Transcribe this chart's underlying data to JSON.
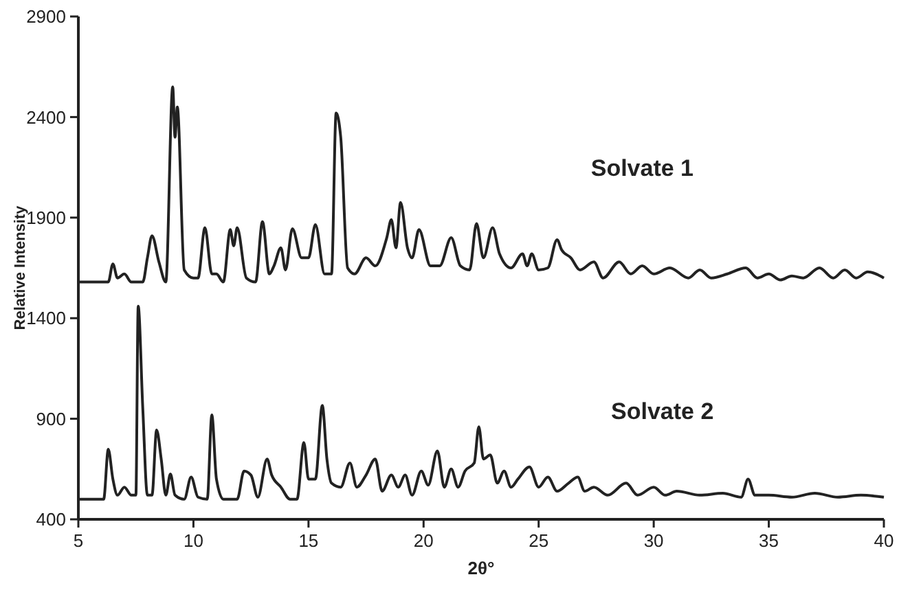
{
  "chart_data": {
    "type": "line",
    "xlabel": "2θ°",
    "ylabel": "Relative Intensity",
    "xlim": [
      5,
      40
    ],
    "xticks": [
      5,
      10,
      15,
      20,
      25,
      30,
      35,
      40
    ],
    "ylim": [
      400,
      2900
    ],
    "yticks": [
      400,
      900,
      1400,
      1900,
      2400,
      2900
    ],
    "grid": false,
    "marker": "none",
    "line_style": "solid",
    "series": [
      {
        "name": "Solvate 1",
        "color": "#222222",
        "x": [
          5,
          6.3,
          6.5,
          6.7,
          7.0,
          7.3,
          7.8,
          8.0,
          8.2,
          8.5,
          8.8,
          9.1,
          9.2,
          9.3,
          9.6,
          10.0,
          10.2,
          10.5,
          10.8,
          11.0,
          11.3,
          11.6,
          11.75,
          11.9,
          12.3,
          12.7,
          13.0,
          13.3,
          13.5,
          13.8,
          14.0,
          14.3,
          14.7,
          15.0,
          15.3,
          15.7,
          16.0,
          16.2,
          16.4,
          16.7,
          17.0,
          17.5,
          17.9,
          18.4,
          18.6,
          18.8,
          19.0,
          19.3,
          19.5,
          19.8,
          20.3,
          20.7,
          21.2,
          21.6,
          22.0,
          22.3,
          22.6,
          23.0,
          23.3,
          23.8,
          24.3,
          24.5,
          24.7,
          25.0,
          25.4,
          25.8,
          26.0,
          26.4,
          26.8,
          27.4,
          27.8,
          28.5,
          29.0,
          29.5,
          30.0,
          30.7,
          31.5,
          32.0,
          32.5,
          33.2,
          34.0,
          34.5,
          35.0,
          35.5,
          36.0,
          36.5,
          37.2,
          37.8,
          38.3,
          38.8,
          39.3,
          40
        ],
        "values": [
          1580,
          1580,
          1670,
          1600,
          1620,
          1580,
          1580,
          1700,
          1810,
          1680,
          1580,
          2550,
          2300,
          2450,
          1640,
          1600,
          1600,
          1850,
          1620,
          1620,
          1580,
          1840,
          1760,
          1850,
          1600,
          1580,
          1880,
          1620,
          1660,
          1750,
          1640,
          1845,
          1700,
          1700,
          1865,
          1620,
          1620,
          2420,
          2300,
          1650,
          1620,
          1700,
          1660,
          1800,
          1890,
          1750,
          1975,
          1750,
          1700,
          1840,
          1660,
          1660,
          1800,
          1660,
          1640,
          1870,
          1700,
          1850,
          1720,
          1650,
          1720,
          1660,
          1720,
          1640,
          1650,
          1790,
          1740,
          1700,
          1640,
          1680,
          1600,
          1680,
          1620,
          1660,
          1620,
          1650,
          1600,
          1640,
          1600,
          1620,
          1650,
          1600,
          1620,
          1590,
          1610,
          1600,
          1650,
          1600,
          1640,
          1600,
          1630,
          1600
        ]
      },
      {
        "name": "Solvate 2",
        "color": "#222222",
        "x": [
          5,
          6.1,
          6.3,
          6.5,
          6.7,
          7.0,
          7.3,
          7.5,
          7.6,
          7.8,
          8.0,
          8.2,
          8.4,
          8.6,
          8.8,
          9.0,
          9.2,
          9.6,
          9.9,
          10.2,
          10.6,
          10.8,
          11.0,
          11.3,
          11.9,
          12.2,
          12.5,
          12.8,
          13.2,
          13.4,
          13.8,
          14.2,
          14.5,
          14.8,
          15.0,
          15.3,
          15.6,
          15.8,
          16.0,
          16.4,
          16.8,
          17.1,
          17.5,
          17.9,
          18.2,
          18.6,
          18.9,
          19.2,
          19.5,
          19.9,
          20.2,
          20.6,
          20.9,
          21.2,
          21.5,
          21.8,
          22.2,
          22.4,
          22.6,
          22.9,
          23.2,
          23.5,
          23.8,
          24.1,
          24.6,
          25.0,
          25.4,
          25.8,
          26.3,
          26.7,
          27.0,
          27.4,
          28.0,
          28.8,
          29.3,
          30.0,
          30.5,
          31.0,
          32.0,
          33.0,
          33.8,
          34.1,
          34.4,
          35.0,
          36.0,
          37.0,
          38.0,
          39.0,
          40
        ],
        "values": [
          500,
          500,
          748,
          600,
          520,
          560,
          520,
          520,
          1460,
          950,
          520,
          520,
          844,
          700,
          520,
          625,
          520,
          500,
          610,
          510,
          500,
          919,
          600,
          500,
          500,
          640,
          620,
          510,
          700,
          620,
          560,
          500,
          500,
          782,
          600,
          600,
          966,
          700,
          580,
          560,
          680,
          560,
          620,
          700,
          540,
          620,
          560,
          620,
          520,
          640,
          570,
          740,
          560,
          650,
          560,
          640,
          680,
          860,
          700,
          720,
          580,
          640,
          560,
          600,
          660,
          560,
          610,
          540,
          580,
          610,
          540,
          560,
          520,
          580,
          520,
          560,
          520,
          540,
          520,
          530,
          510,
          600,
          520,
          520,
          510,
          530,
          510,
          520,
          510
        ]
      }
    ]
  }
}
